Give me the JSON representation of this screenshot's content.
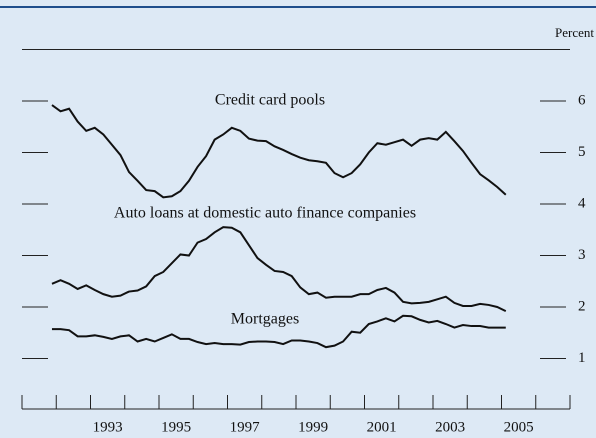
{
  "chart_data": {
    "type": "line",
    "y_axis_label": "Percent",
    "annotations": [
      "Credit card pools",
      "Auto loans at domestic auto finance companies",
      "Mortgages"
    ],
    "x": [
      1991.875,
      1992.125,
      1992.375,
      1992.625,
      1992.875,
      1993.125,
      1993.375,
      1993.625,
      1993.875,
      1994.125,
      1994.375,
      1994.625,
      1994.875,
      1995.125,
      1995.375,
      1995.625,
      1995.875,
      1996.125,
      1996.375,
      1996.625,
      1996.875,
      1997.125,
      1997.375,
      1997.625,
      1997.875,
      1998.125,
      1998.375,
      1998.625,
      1998.875,
      1999.125,
      1999.375,
      1999.625,
      1999.875,
      2000.125,
      2000.375,
      2000.625,
      2000.875,
      2001.125,
      2001.375,
      2001.625,
      2001.875,
      2002.125,
      2002.375,
      2002.625,
      2002.875,
      2003.125,
      2003.375,
      2003.625,
      2003.875,
      2004.125,
      2004.375,
      2004.625,
      2004.875,
      2005.125
    ],
    "series": [
      {
        "name": "Credit card pools",
        "color": "#111111",
        "values": [
          5.92,
          5.8,
          5.85,
          5.6,
          5.42,
          5.48,
          5.35,
          5.15,
          4.95,
          4.62,
          4.45,
          4.27,
          4.25,
          4.13,
          4.15,
          4.25,
          4.45,
          4.72,
          4.93,
          5.25,
          5.35,
          5.48,
          5.42,
          5.27,
          5.23,
          5.22,
          5.12,
          5.05,
          4.97,
          4.9,
          4.85,
          4.83,
          4.8,
          4.6,
          4.52,
          4.6,
          4.77,
          5.0,
          5.18,
          5.15,
          5.2,
          5.25,
          5.13,
          5.25,
          5.28,
          5.25,
          5.4,
          5.22,
          5.03,
          4.8,
          4.58,
          4.46,
          4.33,
          4.18
        ]
      },
      {
        "name": "Auto loans at domestic auto finance companies",
        "color": "#111111",
        "values": [
          2.45,
          2.52,
          2.45,
          2.35,
          2.42,
          2.33,
          2.25,
          2.2,
          2.22,
          2.3,
          2.32,
          2.4,
          2.6,
          2.68,
          2.85,
          3.02,
          3.0,
          3.25,
          3.32,
          3.45,
          3.55,
          3.54,
          3.45,
          3.2,
          2.95,
          2.82,
          2.7,
          2.68,
          2.6,
          2.38,
          2.25,
          2.28,
          2.18,
          2.2,
          2.2,
          2.2,
          2.25,
          2.25,
          2.33,
          2.37,
          2.28,
          2.1,
          2.07,
          2.08,
          2.1,
          2.15,
          2.2,
          2.08,
          2.02,
          2.02,
          2.06,
          2.04,
          2.0,
          1.92
        ]
      },
      {
        "name": "Mortgages",
        "color": "#111111",
        "values": [
          1.57,
          1.57,
          1.55,
          1.43,
          1.43,
          1.45,
          1.42,
          1.38,
          1.43,
          1.45,
          1.33,
          1.38,
          1.33,
          1.4,
          1.47,
          1.38,
          1.38,
          1.32,
          1.28,
          1.3,
          1.28,
          1.28,
          1.27,
          1.32,
          1.33,
          1.33,
          1.32,
          1.28,
          1.35,
          1.35,
          1.33,
          1.3,
          1.22,
          1.25,
          1.33,
          1.52,
          1.5,
          1.67,
          1.72,
          1.78,
          1.72,
          1.83,
          1.82,
          1.75,
          1.7,
          1.73,
          1.67,
          1.6,
          1.65,
          1.63,
          1.63,
          1.6,
          1.6,
          1.6
        ]
      }
    ],
    "xlim": [
      1991,
      2007
    ],
    "xticks": [
      {
        "value": 1993.5,
        "label": "1993"
      },
      {
        "value": 1995.5,
        "label": "1995"
      },
      {
        "value": 1997.5,
        "label": "1997"
      },
      {
        "value": 1999.5,
        "label": "1999"
      },
      {
        "value": 2001.5,
        "label": "2001"
      },
      {
        "value": 2003.5,
        "label": "2003"
      },
      {
        "value": 2005.5,
        "label": "2005"
      }
    ],
    "xminor_ticks": [
      1991,
      1992,
      1993,
      1994,
      1995,
      1996,
      1997,
      1998,
      1999,
      2000,
      2001,
      2002,
      2003,
      2004,
      2005,
      2006,
      2007
    ],
    "ylim": [
      0,
      7
    ],
    "yticks": [
      1,
      2,
      3,
      4,
      5,
      6
    ]
  }
}
